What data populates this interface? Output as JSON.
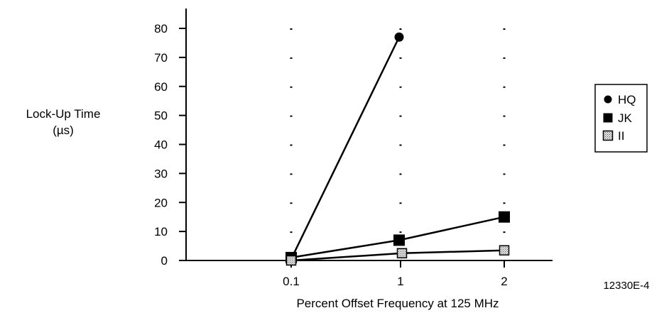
{
  "chart_data": {
    "type": "line",
    "xlabel": "Percent Offset Frequency at 125 MHz",
    "ylabel_line1": "Lock-Up Time",
    "ylabel_line2": "(µs)",
    "categories": [
      "0.1",
      "1",
      "2"
    ],
    "yticks": [
      "0",
      "10",
      "20",
      "30",
      "40",
      "50",
      "60",
      "70",
      "80"
    ],
    "ylim": [
      0,
      80
    ],
    "grid": "dotted vertical at categories",
    "legend_position": "right",
    "series": [
      {
        "name": "HQ",
        "marker": "circle",
        "values": [
          0.5,
          77,
          null
        ]
      },
      {
        "name": "JK",
        "marker": "square",
        "values": [
          1,
          7,
          15
        ]
      },
      {
        "name": "II",
        "marker": "square-dotted",
        "values": [
          0,
          2.5,
          3.5
        ]
      }
    ],
    "figure_id": "12330E-4"
  }
}
